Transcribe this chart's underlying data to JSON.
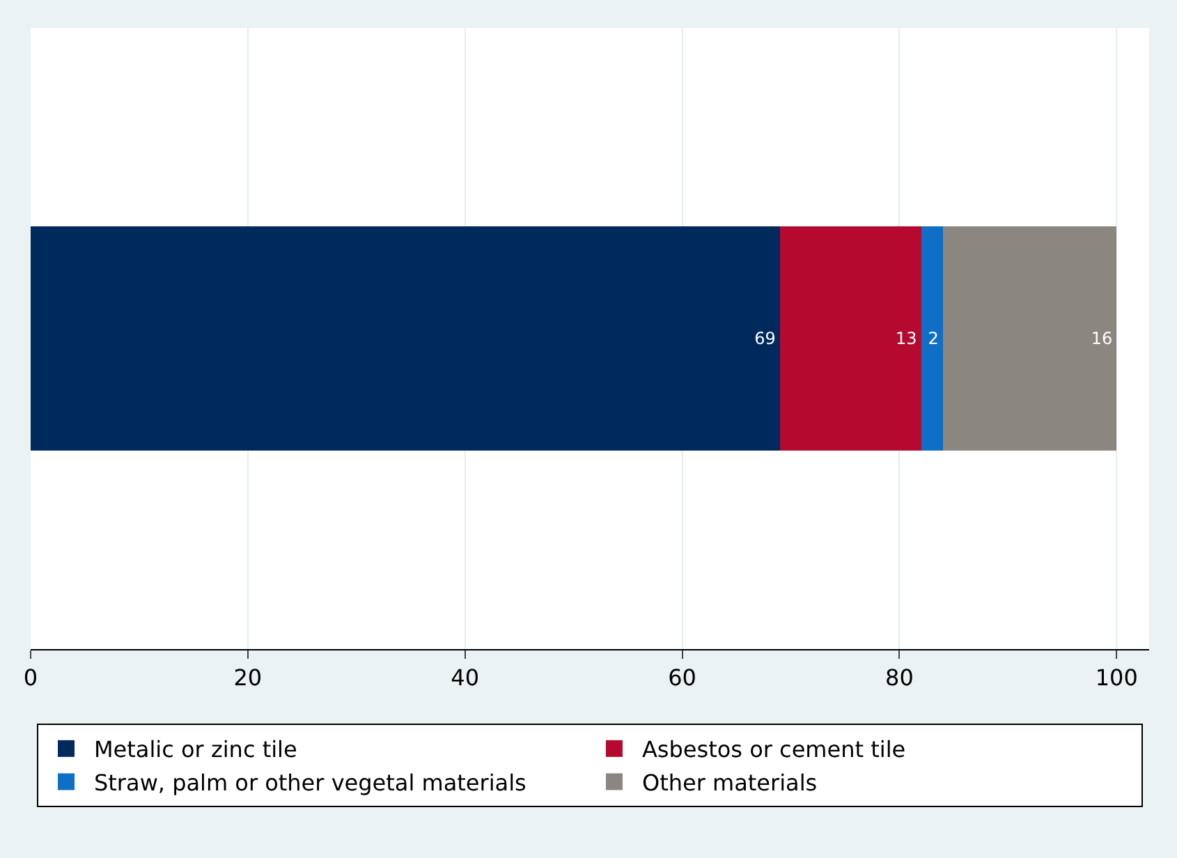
{
  "chart_data": {
    "type": "bar",
    "orientation": "horizontal",
    "stacked": true,
    "categories": [
      null
    ],
    "series": [
      {
        "name": "Metalic or zinc tile",
        "color": "#002a5c",
        "values": [
          69
        ]
      },
      {
        "name": "Asbestos or cement tile",
        "color": "#b5092f",
        "values": [
          13
        ]
      },
      {
        "name": "Straw, palm or other vegetal materials",
        "color": "#0f6fc6",
        "values": [
          2
        ]
      },
      {
        "name": "Other materials",
        "color": "#8b8680",
        "values": [
          16
        ]
      }
    ],
    "xlim": [
      0,
      103
    ],
    "xticks": [
      0,
      20,
      40,
      60,
      80,
      100
    ],
    "grid": "x",
    "legend": "bottom",
    "data_labels": true
  }
}
